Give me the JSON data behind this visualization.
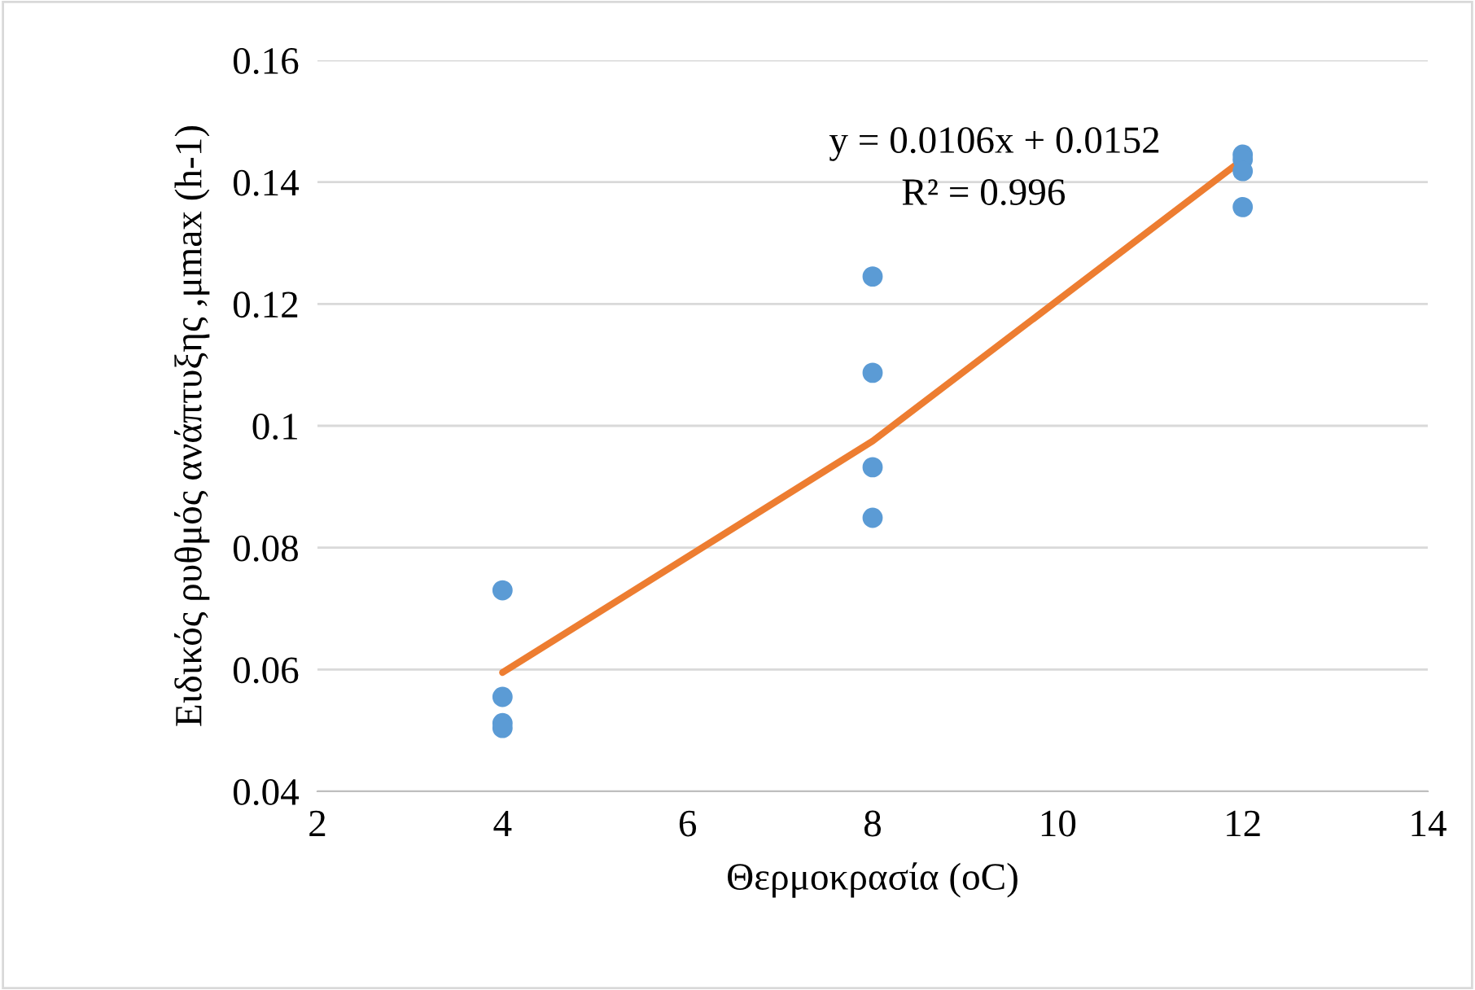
{
  "chart_data": {
    "type": "scatter",
    "xlabel": "Θερμοκρασία (oC)",
    "ylabel": "Ειδικός ρυθμός ανάπτυξης ,μmax (h-1)",
    "series": [
      {
        "color": "#5b9bd5",
        "marker": "circle",
        "x": [
          4,
          4,
          4,
          4,
          8,
          8,
          8,
          8,
          12,
          12,
          12,
          12
        ],
        "values": [
          0.073,
          0.0555,
          0.0512,
          0.0504,
          0.1245,
          0.1087,
          0.0932,
          0.0849,
          0.1445,
          0.1437,
          0.1418,
          0.1359
        ]
      },
      {
        "type": "line",
        "color": "#ed7d31",
        "x": [
          4,
          8,
          12
        ],
        "values": [
          0.0595,
          0.0975,
          0.1437
        ]
      }
    ],
    "annotations": [
      "y = 0.0106x + 0.0152",
      "R² = 0.996"
    ],
    "xlim": [
      2,
      14
    ],
    "xticks": [
      2,
      4,
      6,
      8,
      10,
      12,
      14
    ],
    "ylim": [
      0.04,
      0.16
    ],
    "yticks": [
      0.04,
      0.06,
      0.08,
      0.1,
      0.12,
      0.14,
      0.16
    ],
    "grid": "y",
    "legend": false
  }
}
